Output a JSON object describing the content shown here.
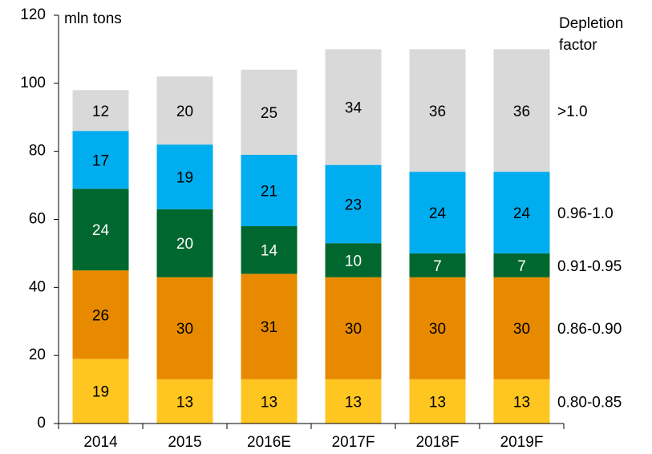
{
  "chart_data": {
    "type": "stacked_bar",
    "y_label": "mln tons",
    "legend_title": [
      "Depletion",
      "factor"
    ],
    "categories": [
      "2014",
      "2015",
      "2016E",
      "2017F",
      "2018F",
      "2019F"
    ],
    "series": [
      {
        "name": "0.80-0.85",
        "color": "#ffc520",
        "label_color": "#000000",
        "values": [
          19,
          13,
          13,
          13,
          13,
          13
        ]
      },
      {
        "name": "0.86-0.90",
        "color": "#e88a00",
        "label_color": "#000000",
        "values": [
          26,
          30,
          31,
          30,
          30,
          30
        ]
      },
      {
        "name": "0.91-0.95",
        "color": "#00682f",
        "label_color": "#ffffff",
        "values": [
          24,
          20,
          14,
          10,
          7,
          7
        ]
      },
      {
        "name": "0.96-1.0",
        "color": "#00adef",
        "label_color": "#000000",
        "values": [
          17,
          19,
          21,
          23,
          24,
          24
        ]
      },
      {
        "name": ">1.0",
        "color": "#d9d9d9",
        "label_color": "#000000",
        "values": [
          12,
          20,
          25,
          34,
          36,
          36
        ]
      }
    ],
    "ylim": [
      0,
      120
    ],
    "yticks": [
      0,
      20,
      40,
      60,
      80,
      100,
      120
    ],
    "grid": false,
    "legend": "right"
  }
}
